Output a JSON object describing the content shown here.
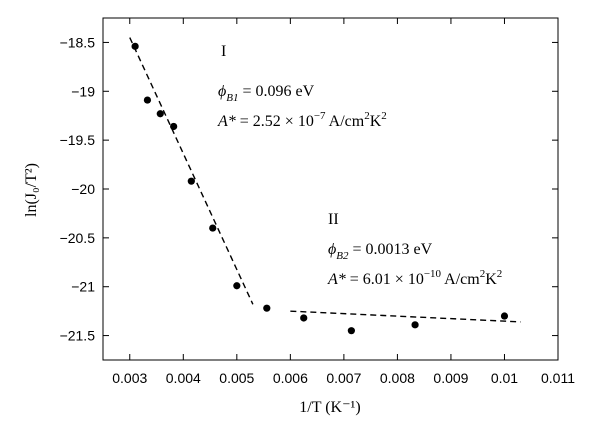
{
  "chart_data": {
    "type": "scatter",
    "title": "",
    "xlabel": "1/T (K⁻¹)",
    "ylabel": "ln(J₀/T²)",
    "xlim": [
      0.0025,
      0.011
    ],
    "ylim": [
      -21.75,
      -18.25
    ],
    "xticks": [
      0.003,
      0.004,
      0.005,
      0.006,
      0.007,
      0.008,
      0.009,
      0.01,
      0.011
    ],
    "xtick_labels": [
      "0.003",
      "0.004",
      "0.005",
      "0.006",
      "0.007",
      "0.008",
      "0.009",
      "0.01",
      "0.011"
    ],
    "yticks": [
      -18.5,
      -19,
      -19.5,
      -20,
      -20.5,
      -21,
      -21.5
    ],
    "ytick_labels": [
      "−18.5",
      "−19",
      "−19.5",
      "−20",
      "−20.5",
      "−21",
      "−21.5"
    ],
    "grid": false,
    "series": [
      {
        "marker": "circle",
        "color": "#000000",
        "x": [
          0.0031,
          0.00333,
          0.00357,
          0.00382,
          0.00415,
          0.00455,
          0.005,
          0.00556,
          0.00625,
          0.00714,
          0.00833,
          0.01
        ],
        "y": [
          -18.54,
          -19.09,
          -19.23,
          -19.36,
          -19.92,
          -20.4,
          -20.99,
          -21.22,
          -21.32,
          -21.45,
          -21.39,
          -21.3
        ]
      }
    ],
    "fit_lines": [
      {
        "style": "dashed",
        "color": "#000000",
        "x": [
          0.003,
          0.0053
        ],
        "y": [
          -18.45,
          -21.18
        ]
      },
      {
        "style": "dashed",
        "color": "#000000",
        "x": [
          0.006,
          0.0103
        ],
        "y": [
          -21.25,
          -21.36
        ]
      }
    ],
    "annotations": {
      "region1": {
        "label": "I",
        "phi_symbol": "ϕ",
        "phi_sub": "B1",
        "phi_value": " = 0.096 eV",
        "a_symbol": "A*",
        "a_prefix": " = 2.52 × 10",
        "a_exp": "−7",
        "a_unit": " A/cm",
        "a_unit_sup1": "2",
        "a_unit_mid": "K",
        "a_unit_sup2": "2"
      },
      "region2": {
        "label": "II",
        "phi_symbol": "ϕ",
        "phi_sub": "B2",
        "phi_value": " = 0.0013 eV",
        "a_symbol": "A*",
        "a_prefix": " = 6.01 × 10",
        "a_exp": "−10",
        "a_unit": " A/cm",
        "a_unit_sup1": "2",
        "a_unit_mid": "K",
        "a_unit_sup2": "2"
      }
    }
  }
}
